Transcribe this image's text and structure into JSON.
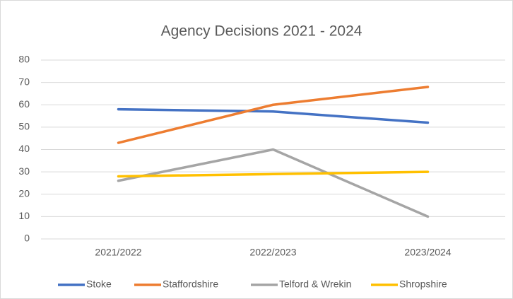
{
  "chart_data": {
    "type": "line",
    "title": "Agency Decisions 2021 - 2024",
    "categories": [
      "2021/2022",
      "2022/2023",
      "2023/2024"
    ],
    "series": [
      {
        "name": "Stoke",
        "color": "#4472c4",
        "values": [
          58,
          57,
          52
        ]
      },
      {
        "name": "Staffordshire",
        "color": "#ed7d31",
        "values": [
          43,
          60,
          68
        ]
      },
      {
        "name": "Telford & Wrekin",
        "color": "#a5a5a5",
        "values": [
          26,
          40,
          10
        ]
      },
      {
        "name": "Shropshire",
        "color": "#ffc000",
        "values": [
          28,
          29,
          30
        ]
      }
    ],
    "ylim": [
      0,
      80
    ],
    "yticks": [
      0,
      10,
      20,
      30,
      40,
      50,
      60,
      70,
      80
    ],
    "grid": true,
    "legend": "bottom"
  }
}
